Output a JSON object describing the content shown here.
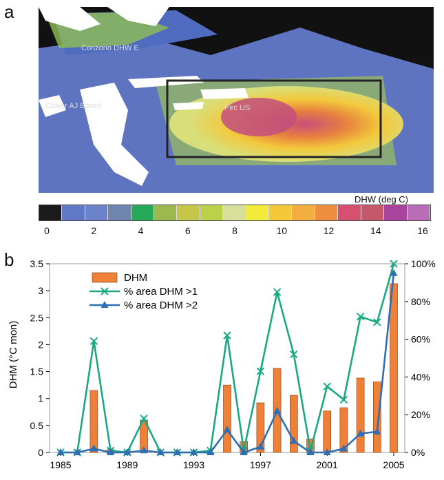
{
  "panels": {
    "a": "a",
    "b": "b"
  },
  "map": {
    "overlay_labels": [
      "Conzorio DHW E",
      "Clover AJ Based",
      "Pirc US"
    ]
  },
  "colorbar": {
    "label": "DHW (deg C)",
    "ticks": [
      "0",
      "2",
      "4",
      "6",
      "8",
      "10",
      "12",
      "14",
      "16"
    ],
    "colors": [
      "#1a1a1a",
      "#5f78c7",
      "#6c82c9",
      "#6f86b0",
      "#27a85a",
      "#9bb94e",
      "#c6c64a",
      "#bcd14a",
      "#d7df9a",
      "#f4ea3a",
      "#f5c83a",
      "#f2ae3e",
      "#ee8f3f",
      "#d65170",
      "#c4576a",
      "#a8449e",
      "#b96db4"
    ]
  },
  "chart_data": {
    "type": "bar+line",
    "x": [
      1985,
      1986,
      1987,
      1988,
      1989,
      1990,
      1991,
      1992,
      1993,
      1994,
      1995,
      1996,
      1997,
      1998,
      1999,
      2000,
      2001,
      2002,
      2003,
      2004,
      2005
    ],
    "x_ticks": [
      "1985",
      "1989",
      "1993",
      "1997",
      "2001",
      "2005"
    ],
    "y_left_ticks": [
      "0",
      "0.5",
      "1",
      "1.5",
      "2",
      "2.5",
      "3",
      "3.5"
    ],
    "y_right_ticks": [
      "0%",
      "20%",
      "40%",
      "60%",
      "80%",
      "100%"
    ],
    "ylabel": "DHM (°C mon)",
    "ylim": [
      0,
      3.5
    ],
    "y2lim": [
      0,
      100
    ],
    "series": [
      {
        "name": "DHM",
        "kind": "bar",
        "color": "#ee8038",
        "values": [
          0,
          0,
          1.15,
          0.05,
          0.02,
          0.6,
          0,
          0,
          0,
          0,
          1.25,
          0.2,
          0.92,
          1.56,
          1.06,
          0.25,
          0.77,
          0.83,
          1.38,
          1.31,
          3.13
        ]
      },
      {
        "name": "% area DHM >1",
        "kind": "line",
        "axis": "right",
        "color": "#1aa882",
        "values": [
          0,
          0,
          59,
          1,
          0,
          18,
          0,
          0,
          0,
          1,
          62,
          1,
          43,
          85,
          52,
          1,
          35,
          28,
          72,
          69,
          100
        ]
      },
      {
        "name": "% area DHM >2",
        "kind": "line",
        "axis": "right",
        "color": "#2f6db5",
        "values": [
          0,
          0,
          2,
          0,
          0,
          1,
          0,
          0,
          0,
          0,
          12,
          0,
          3,
          22,
          6,
          0,
          0,
          2,
          10,
          11,
          95
        ]
      }
    ]
  }
}
